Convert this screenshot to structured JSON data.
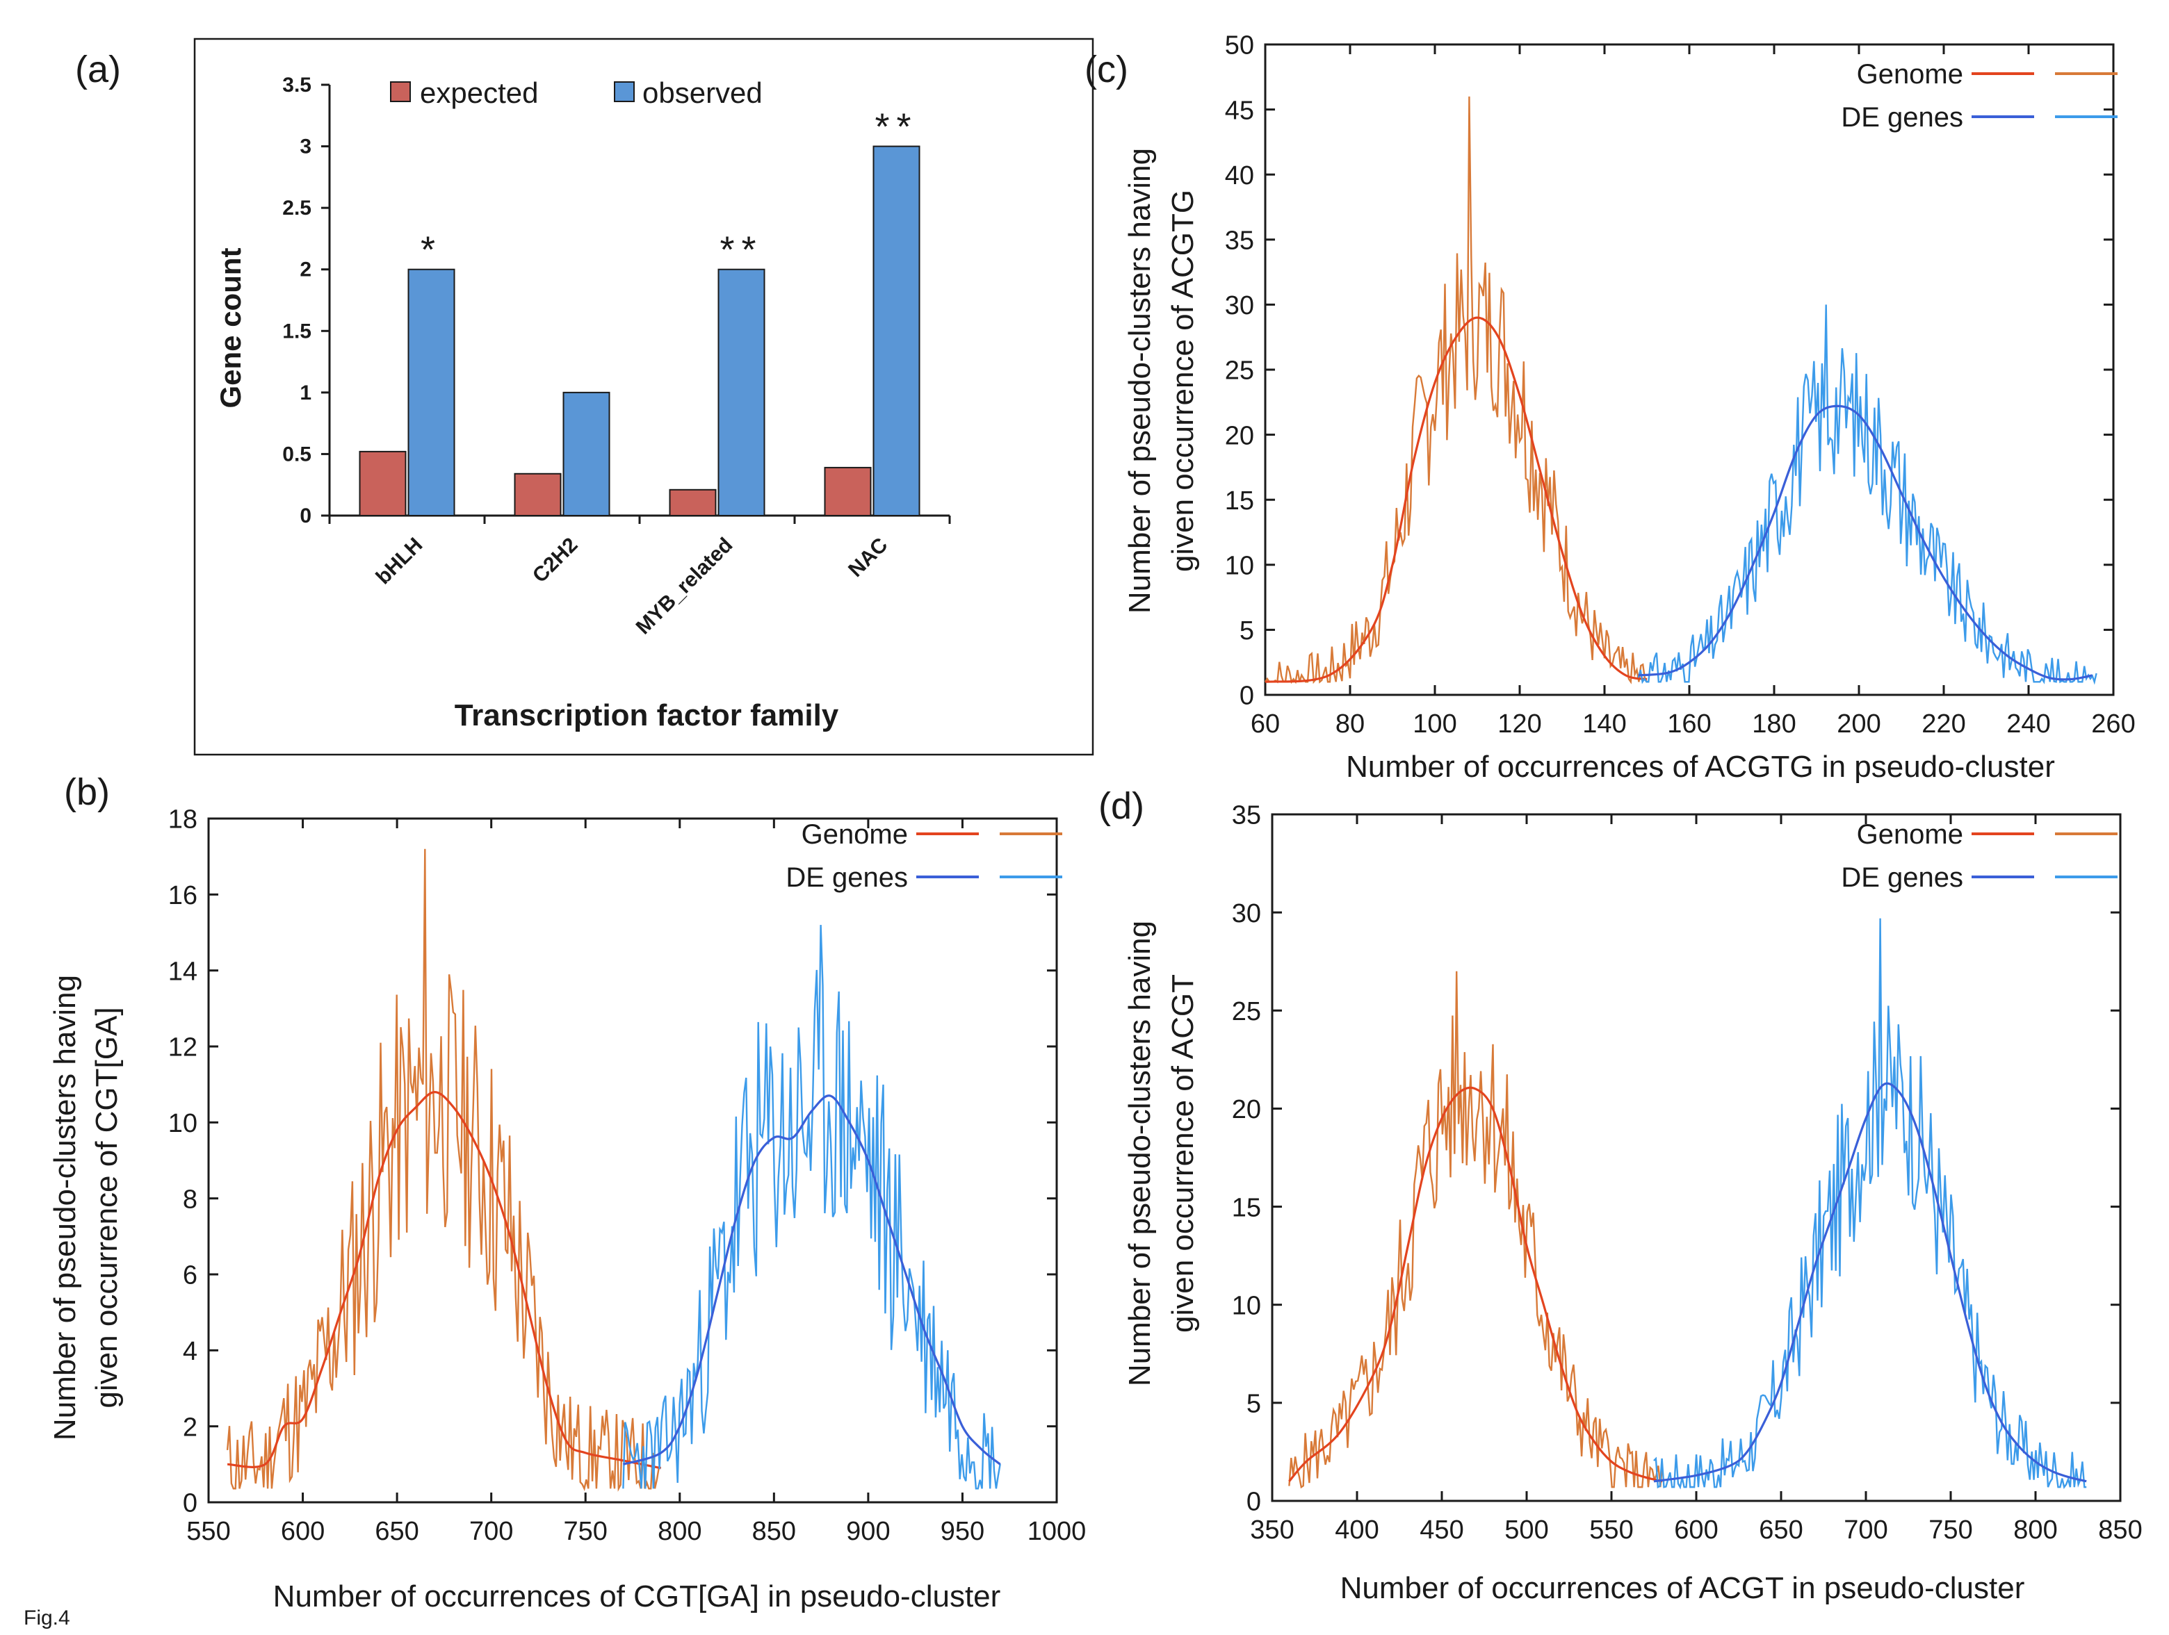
{
  "figure_label": "Fig.4",
  "panels": {
    "a": {
      "label": "(a)"
    },
    "b": {
      "label": "(b)"
    },
    "c": {
      "label": "(c)"
    },
    "d": {
      "label": "(d)"
    }
  },
  "chart_data": [
    {
      "id": "a",
      "type": "bar",
      "title": "",
      "xlabel": "Transcription factor family",
      "ylabel": "Gene count",
      "ylim": [
        0,
        3.5
      ],
      "yticks": [
        0,
        0.5,
        1,
        1.5,
        2,
        2.5,
        3,
        3.5
      ],
      "ytick_labels": [
        "0",
        "0.5",
        "1",
        "1.5",
        "2",
        "2.5",
        "3",
        "3.5"
      ],
      "categories": [
        "bHLH",
        "C2H2",
        "MYB_related",
        "NAC"
      ],
      "series": [
        {
          "name": "expected",
          "color": "#c9625b",
          "values": [
            0.52,
            0.34,
            0.21,
            0.39
          ]
        },
        {
          "name": "observed",
          "color": "#5a96d6",
          "values": [
            2,
            1,
            2,
            3
          ]
        }
      ],
      "annotations": [
        "*",
        "",
        "**",
        "**"
      ],
      "legend": "top"
    },
    {
      "id": "b",
      "type": "line",
      "xlabel": "Number of occurrences of CGT[GA] in pseudo-cluster",
      "ylabel": [
        "Number of pseudo-clusters having",
        "given occurrence of CGT[GA]"
      ],
      "xlim": [
        550,
        1000
      ],
      "ylim": [
        0,
        18
      ],
      "xticks": [
        550,
        600,
        650,
        700,
        750,
        800,
        850,
        900,
        950,
        1000
      ],
      "yticks": [
        0,
        2,
        4,
        6,
        8,
        10,
        12,
        14,
        16,
        18
      ],
      "legend": "top-right",
      "series": [
        {
          "name": "Genome",
          "color": "#e3441f",
          "noisy_color": "#d87a38",
          "peak": 10.8,
          "peak_noisy": 17.2,
          "smooth": [
            [
              560,
              1
            ],
            [
              580,
              1
            ],
            [
              590,
              2
            ],
            [
              600,
              2.2
            ],
            [
              610,
              3.5
            ],
            [
              620,
              5
            ],
            [
              630,
              6.5
            ],
            [
              640,
              8.5
            ],
            [
              650,
              9.8
            ],
            [
              660,
              10.4
            ],
            [
              670,
              10.8
            ],
            [
              680,
              10.4
            ],
            [
              690,
              9.6
            ],
            [
              700,
              8.5
            ],
            [
              710,
              7
            ],
            [
              720,
              5
            ],
            [
              730,
              3
            ],
            [
              740,
              1.6
            ],
            [
              750,
              1.3
            ],
            [
              770,
              1.1
            ],
            [
              790,
              0.9
            ]
          ],
          "noisy_range": [
            560,
            790
          ],
          "noise_amp": 2.8,
          "noise_seed": 11
        },
        {
          "name": "DE genes",
          "color": "#3a5fd8",
          "noisy_color": "#3c9bea",
          "peak": 10.7,
          "peak_noisy": 15.2,
          "smooth": [
            [
              770,
              1
            ],
            [
              790,
              1.3
            ],
            [
              800,
              2
            ],
            [
              810,
              3.5
            ],
            [
              820,
              5.5
            ],
            [
              830,
              7.5
            ],
            [
              840,
              9
            ],
            [
              850,
              9.6
            ],
            [
              860,
              9.6
            ],
            [
              870,
              10.3
            ],
            [
              880,
              10.7
            ],
            [
              890,
              10
            ],
            [
              900,
              9
            ],
            [
              910,
              7.5
            ],
            [
              920,
              6
            ],
            [
              930,
              4.5
            ],
            [
              940,
              3.3
            ],
            [
              950,
              2
            ],
            [
              960,
              1.4
            ],
            [
              970,
              1
            ]
          ],
          "noisy_range": [
            770,
            970
          ],
          "noise_amp": 2.8,
          "noise_seed": 23
        }
      ]
    },
    {
      "id": "c",
      "type": "line",
      "xlabel": "Number of occurrences of ACGTG in pseudo-cluster",
      "ylabel": [
        "Number of pseudo-clusters having",
        "given occurrence of ACGTG"
      ],
      "xlim": [
        60,
        260
      ],
      "ylim": [
        0,
        50
      ],
      "xticks": [
        60,
        80,
        100,
        120,
        140,
        160,
        180,
        200,
        220,
        240,
        260
      ],
      "yticks": [
        0,
        5,
        10,
        15,
        20,
        25,
        30,
        35,
        40,
        45,
        50
      ],
      "legend": "top-right",
      "series": [
        {
          "name": "Genome",
          "color": "#e3441f",
          "noisy_color": "#d87a38",
          "peak": 29,
          "peak_noisy": 46,
          "smooth": [
            [
              60,
              1
            ],
            [
              75,
              1.5
            ],
            [
              85,
              5
            ],
            [
              90,
              10
            ],
            [
              95,
              18
            ],
            [
              100,
              24
            ],
            [
              105,
              27.5
            ],
            [
              110,
              29
            ],
            [
              115,
              27.5
            ],
            [
              120,
              23
            ],
            [
              125,
              17
            ],
            [
              130,
              11
            ],
            [
              135,
              6
            ],
            [
              140,
              3
            ],
            [
              145,
              1.5
            ],
            [
              150,
              1.2
            ]
          ],
          "noisy_range": [
            60,
            150
          ],
          "noise_amp": 5,
          "noise_seed": 7
        },
        {
          "name": "DE genes",
          "color": "#3a5fd8",
          "noisy_color": "#3c9bea",
          "peak": 22.2,
          "peak_noisy": 30,
          "smooth": [
            [
              148,
              1.5
            ],
            [
              155,
              1.7
            ],
            [
              160,
              2.5
            ],
            [
              165,
              4
            ],
            [
              170,
              6.5
            ],
            [
              175,
              10
            ],
            [
              180,
              14
            ],
            [
              185,
              18.5
            ],
            [
              190,
              21.5
            ],
            [
              195,
              22.2
            ],
            [
              200,
              21.5
            ],
            [
              205,
              19
            ],
            [
              210,
              15.5
            ],
            [
              215,
              12
            ],
            [
              220,
              9
            ],
            [
              225,
              6.5
            ],
            [
              230,
              4.5
            ],
            [
              235,
              3
            ],
            [
              240,
              2
            ],
            [
              245,
              1.3
            ],
            [
              250,
              1.2
            ],
            [
              255,
              1.5
            ]
          ],
          "noisy_range": [
            148,
            256
          ],
          "noise_amp": 4,
          "noise_seed": 31
        }
      ]
    },
    {
      "id": "d",
      "type": "line",
      "xlabel": "Number of occurrences of ACGT in pseudo-cluster",
      "ylabel": [
        "Number of pseudo-clusters having",
        "given occurrence of ACGT"
      ],
      "xlim": [
        350,
        850
      ],
      "ylim": [
        0,
        35
      ],
      "xticks": [
        350,
        400,
        450,
        500,
        550,
        600,
        650,
        700,
        750,
        800,
        850
      ],
      "yticks": [
        0,
        5,
        10,
        15,
        20,
        25,
        30,
        35
      ],
      "legend": "top-right",
      "series": [
        {
          "name": "Genome",
          "color": "#e3441f",
          "noisy_color": "#d87a38",
          "peak": 21,
          "peak_noisy": 27,
          "smooth": [
            [
              360,
              1
            ],
            [
              370,
              2
            ],
            [
              390,
              3.5
            ],
            [
              410,
              6.5
            ],
            [
              420,
              9
            ],
            [
              430,
              13
            ],
            [
              440,
              17
            ],
            [
              450,
              19.5
            ],
            [
              460,
              20.8
            ],
            [
              470,
              21
            ],
            [
              480,
              20
            ],
            [
              490,
              17
            ],
            [
              500,
              13
            ],
            [
              510,
              10
            ],
            [
              520,
              7
            ],
            [
              530,
              4.5
            ],
            [
              540,
              3
            ],
            [
              550,
              2
            ],
            [
              560,
              1.5
            ],
            [
              570,
              1.2
            ],
            [
              580,
              1
            ]
          ],
          "noisy_range": [
            360,
            580
          ],
          "noise_amp": 3.5,
          "noise_seed": 5
        },
        {
          "name": "DE genes",
          "color": "#3a5fd8",
          "noisy_color": "#3c9bea",
          "peak": 21.2,
          "peak_noisy": 29.7,
          "smooth": [
            [
              575,
              1
            ],
            [
              600,
              1.3
            ],
            [
              620,
              1.8
            ],
            [
              630,
              2.5
            ],
            [
              640,
              4
            ],
            [
              650,
              6
            ],
            [
              660,
              9
            ],
            [
              670,
              12
            ],
            [
              680,
              14.5
            ],
            [
              690,
              17
            ],
            [
              700,
              19.5
            ],
            [
              710,
              21.2
            ],
            [
              720,
              20.8
            ],
            [
              730,
              19
            ],
            [
              740,
              16
            ],
            [
              750,
              12.5
            ],
            [
              760,
              9
            ],
            [
              770,
              6
            ],
            [
              780,
              4
            ],
            [
              790,
              2.8
            ],
            [
              800,
              2
            ],
            [
              810,
              1.5
            ],
            [
              820,
              1.2
            ],
            [
              830,
              1
            ]
          ],
          "noisy_range": [
            575,
            830
          ],
          "noise_amp": 3.5,
          "noise_seed": 17
        }
      ]
    }
  ]
}
